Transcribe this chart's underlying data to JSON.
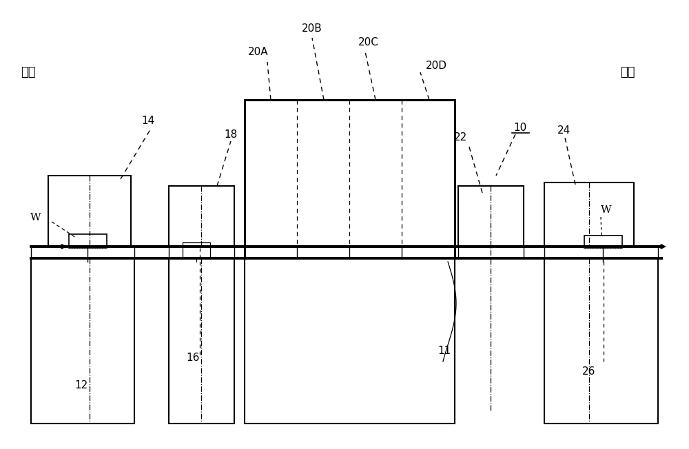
{
  "bg_color": "#ffffff",
  "line_color": "#000000",
  "fig_width": 10.0,
  "fig_height": 6.52,
  "labels": {
    "upstream": "上游",
    "downstream": "下游",
    "14": "14",
    "18": "18",
    "20A": "20A",
    "20B": "20B",
    "20C": "20C",
    "20D": "20D",
    "22": "22",
    "10": "10",
    "24": "24",
    "12": "12",
    "16": "16",
    "11": "11",
    "26": "26",
    "W_left": "W",
    "W_right": "W"
  }
}
